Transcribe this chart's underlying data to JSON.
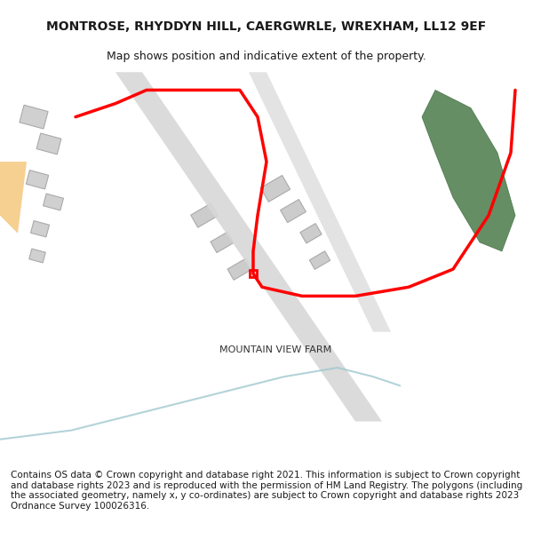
{
  "title": "MONTROSE, RHYDDYN HILL, CAERGWRLE, WREXHAM, LL12 9EF",
  "subtitle": "Map shows position and indicative extent of the property.",
  "footer": "Contains OS data © Crown copyright and database right 2021. This information is subject to Crown copyright and database rights 2023 and is reproduced with the permission of HM Land Registry. The polygons (including the associated geometry, namely x, y co-ordinates) are subject to Crown copyright and database rights 2023 Ordnance Survey 100026316.",
  "background_color": "#ffffff",
  "map_background": "#f8f8f8",
  "title_fontsize": 10,
  "subtitle_fontsize": 9,
  "footer_fontsize": 7.5,
  "farm_label": "MOUNTAIN VIEW FARM",
  "road_color": "#c8c8c8",
  "building_color": "#d4d4d4",
  "building_edge_color": "#aaaaaa",
  "red_line_color": "#ff0000",
  "green_patch_color": "#4a7a4a",
  "orange_road_color": "#f5c842",
  "blue_curve_color": "#a0c8d0",
  "small_red_square_color": "#cc0000"
}
